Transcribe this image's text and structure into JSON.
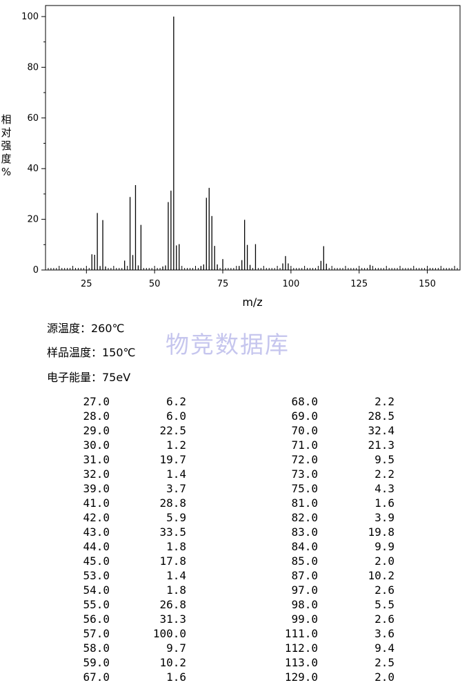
{
  "chart_data": {
    "type": "bar",
    "xlabel": "m/z",
    "ylabel": "相对强度%",
    "xlim": [
      10,
      162
    ],
    "ylim": [
      0,
      100
    ],
    "x_ticks": [
      "25",
      "50",
      "75",
      "100",
      "125",
      "150"
    ],
    "y_ticks": [
      "0",
      "20",
      "40",
      "60",
      "80",
      "100"
    ],
    "peaks_mz": [
      27.0,
      28.0,
      29.0,
      30.0,
      31.0,
      32.0,
      39.0,
      41.0,
      42.0,
      43.0,
      44.0,
      45.0,
      53.0,
      54.0,
      55.0,
      56.0,
      57.0,
      58.0,
      59.0,
      67.0,
      68.0,
      69.0,
      70.0,
      71.0,
      72.0,
      73.0,
      75.0,
      81.0,
      82.0,
      83.0,
      84.0,
      85.0,
      87.0,
      97.0,
      98.0,
      99.0,
      111.0,
      112.0,
      113.0,
      129.0
    ],
    "peaks_intensity": [
      6.2,
      6.0,
      22.5,
      1.2,
      19.7,
      1.4,
      3.7,
      28.8,
      5.9,
      33.5,
      1.8,
      17.8,
      1.4,
      1.8,
      26.8,
      31.3,
      100.0,
      9.7,
      10.2,
      1.6,
      2.2,
      28.5,
      32.4,
      21.3,
      9.5,
      2.2,
      4.3,
      1.6,
      3.9,
      19.8,
      9.9,
      2.0,
      10.2,
      2.6,
      5.5,
      2.6,
      3.6,
      9.4,
      2.5,
      2.0
    ]
  },
  "info": {
    "source_temp": "源温度：260℃",
    "sample_temp": "样品温度：150℃",
    "electron_energy": "电子能量：75eV"
  },
  "watermark": "物竞数据库",
  "table": {
    "rows": [
      [
        "27.0",
        "6.2",
        "68.0",
        "2.2"
      ],
      [
        "28.0",
        "6.0",
        "69.0",
        "28.5"
      ],
      [
        "29.0",
        "22.5",
        "70.0",
        "32.4"
      ],
      [
        "30.0",
        "1.2",
        "71.0",
        "21.3"
      ],
      [
        "31.0",
        "19.7",
        "72.0",
        "9.5"
      ],
      [
        "32.0",
        "1.4",
        "73.0",
        "2.2"
      ],
      [
        "39.0",
        "3.7",
        "75.0",
        "4.3"
      ],
      [
        "41.0",
        "28.8",
        "81.0",
        "1.6"
      ],
      [
        "42.0",
        "5.9",
        "82.0",
        "3.9"
      ],
      [
        "43.0",
        "33.5",
        "83.0",
        "19.8"
      ],
      [
        "44.0",
        "1.8",
        "84.0",
        "9.9"
      ],
      [
        "45.0",
        "17.8",
        "85.0",
        "2.0"
      ],
      [
        "53.0",
        "1.4",
        "87.0",
        "10.2"
      ],
      [
        "54.0",
        "1.8",
        "97.0",
        "2.6"
      ],
      [
        "55.0",
        "26.8",
        "98.0",
        "5.5"
      ],
      [
        "56.0",
        "31.3",
        "99.0",
        "2.6"
      ],
      [
        "57.0",
        "100.0",
        "111.0",
        "3.6"
      ],
      [
        "58.0",
        "9.7",
        "112.0",
        "9.4"
      ],
      [
        "59.0",
        "10.2",
        "113.0",
        "2.5"
      ],
      [
        "67.0",
        "1.6",
        "129.0",
        "2.0"
      ]
    ]
  }
}
